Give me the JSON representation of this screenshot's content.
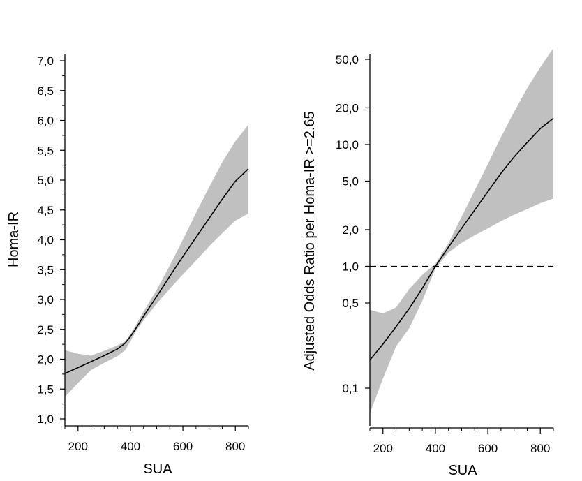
{
  "chart_data": [
    {
      "type": "line",
      "panel": "left",
      "xlabel": "SUA",
      "ylabel": "Homa-IR",
      "xlim": [
        150,
        850
      ],
      "ylim": [
        1.0,
        7.0
      ],
      "x_ticks": [
        200,
        400,
        600,
        800
      ],
      "y_ticks": [
        1.0,
        1.5,
        2.0,
        2.5,
        3.0,
        3.5,
        4.0,
        4.5,
        5.0,
        5.5,
        6.0,
        6.5,
        7.0
      ],
      "y_tick_labels": [
        "1,0",
        "1,5",
        "2,0",
        "2,5",
        "3,0",
        "3,5",
        "4,0",
        "4,5",
        "5,0",
        "5,5",
        "6,0",
        "6,5",
        "7,0"
      ],
      "x_tick_labels": [
        "200",
        "400",
        "600",
        "800"
      ],
      "series": [
        {
          "name": "estimate",
          "x": [
            150,
            200,
            250,
            300,
            350,
            380,
            400,
            420,
            450,
            500,
            550,
            600,
            650,
            700,
            750,
            800,
            850
          ],
          "y": [
            1.76,
            1.86,
            1.96,
            2.06,
            2.17,
            2.27,
            2.38,
            2.51,
            2.72,
            3.05,
            3.39,
            3.72,
            4.04,
            4.36,
            4.68,
            4.98,
            5.19
          ]
        },
        {
          "name": "ci_upper",
          "x": [
            150,
            200,
            250,
            300,
            350,
            380,
            400,
            420,
            450,
            500,
            550,
            600,
            650,
            700,
            750,
            800,
            850
          ],
          "y": [
            2.15,
            2.09,
            2.06,
            2.14,
            2.23,
            2.3,
            2.42,
            2.56,
            2.8,
            3.16,
            3.57,
            4.0,
            4.45,
            4.88,
            5.3,
            5.65,
            5.93
          ]
        },
        {
          "name": "ci_lower",
          "x": [
            150,
            200,
            250,
            300,
            350,
            380,
            400,
            420,
            450,
            500,
            550,
            600,
            650,
            700,
            750,
            800,
            850
          ],
          "y": [
            1.37,
            1.6,
            1.82,
            1.94,
            2.05,
            2.15,
            2.3,
            2.46,
            2.65,
            2.93,
            3.18,
            3.42,
            3.65,
            3.89,
            4.11,
            4.32,
            4.44
          ]
        }
      ]
    },
    {
      "type": "line",
      "panel": "right",
      "xlabel": "SUA",
      "ylabel": "Adjusted Odds Ratio per Homa-IR >=2.65",
      "y_scale": "log",
      "xlim": [
        150,
        850
      ],
      "ylim": [
        0.047,
        60
      ],
      "x_ticks": [
        200,
        400,
        600,
        800
      ],
      "x_tick_labels": [
        "200",
        "400",
        "600",
        "800"
      ],
      "y_ticks": [
        0.1,
        0.5,
        1.0,
        2.0,
        5.0,
        10.0,
        20.0,
        50.0
      ],
      "y_tick_labels": [
        "0,1",
        "0,5",
        "1,0",
        "2,0",
        "5,0",
        "10,0",
        "20,0",
        "50,0"
      ],
      "reference_line": 1.0,
      "series": [
        {
          "name": "estimate",
          "x": [
            150,
            200,
            250,
            300,
            350,
            400,
            450,
            500,
            550,
            600,
            650,
            700,
            750,
            800,
            850
          ],
          "y": [
            0.17,
            0.23,
            0.32,
            0.45,
            0.66,
            1.0,
            1.44,
            2.05,
            2.9,
            4.1,
            5.8,
            7.9,
            10.4,
            13.5,
            16.4
          ]
        },
        {
          "name": "ci_upper",
          "x": [
            150,
            200,
            250,
            300,
            350,
            400,
            450,
            500,
            550,
            600,
            650,
            700,
            750,
            800,
            850
          ],
          "y": [
            0.44,
            0.41,
            0.46,
            0.65,
            0.85,
            1.05,
            1.55,
            2.55,
            4.2,
            6.9,
            11.5,
            18.5,
            29.0,
            43.0,
            62.0
          ]
        },
        {
          "name": "ci_lower",
          "x": [
            150,
            200,
            250,
            300,
            350,
            400,
            450,
            500,
            550,
            600,
            650,
            700,
            750,
            800,
            850
          ],
          "y": [
            0.062,
            0.12,
            0.22,
            0.31,
            0.52,
            0.96,
            1.3,
            1.56,
            1.8,
            2.05,
            2.35,
            2.65,
            2.95,
            3.3,
            3.6
          ]
        }
      ]
    }
  ]
}
